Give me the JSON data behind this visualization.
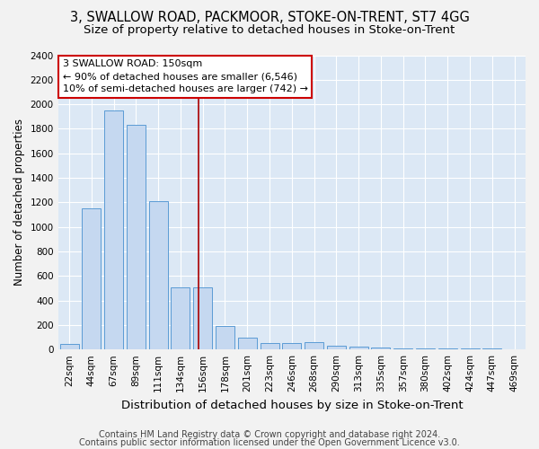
{
  "title1": "3, SWALLOW ROAD, PACKMOOR, STOKE-ON-TRENT, ST7 4GG",
  "title2": "Size of property relative to detached houses in Stoke-on-Trent",
  "xlabel": "Distribution of detached houses by size in Stoke-on-Trent",
  "ylabel": "Number of detached properties",
  "categories": [
    "22sqm",
    "44sqm",
    "67sqm",
    "89sqm",
    "111sqm",
    "134sqm",
    "156sqm",
    "178sqm",
    "201sqm",
    "223sqm",
    "246sqm",
    "268sqm",
    "290sqm",
    "313sqm",
    "335sqm",
    "357sqm",
    "380sqm",
    "402sqm",
    "424sqm",
    "447sqm",
    "469sqm"
  ],
  "values": [
    44,
    1150,
    1950,
    1830,
    1210,
    510,
    510,
    190,
    100,
    55,
    55,
    60,
    30,
    20,
    15,
    10,
    10,
    5,
    5,
    5,
    3
  ],
  "bar_color": "#c5d8f0",
  "bar_edge_color": "#5b9bd5",
  "vline_x": 5.82,
  "vline_color": "#aa0000",
  "annotation_line1": "3 SWALLOW ROAD: 150sqm",
  "annotation_line2": "← 90% of detached houses are smaller (6,546)",
  "annotation_line3": "10% of semi-detached houses are larger (742) →",
  "annotation_box_color": "#ffffff",
  "annotation_box_edge": "#cc0000",
  "ylim": [
    0,
    2400
  ],
  "yticks": [
    0,
    200,
    400,
    600,
    800,
    1000,
    1200,
    1400,
    1600,
    1800,
    2000,
    2200,
    2400
  ],
  "footer1": "Contains HM Land Registry data © Crown copyright and database right 2024.",
  "footer2": "Contains public sector information licensed under the Open Government Licence v3.0.",
  "bg_color": "#dce8f5",
  "grid_color": "#ffffff",
  "fig_bg": "#f2f2f2",
  "title1_fontsize": 10.5,
  "title2_fontsize": 9.5,
  "xlabel_fontsize": 9.5,
  "ylabel_fontsize": 8.5,
  "tick_fontsize": 7.5,
  "annot_fontsize": 8,
  "footer_fontsize": 7
}
